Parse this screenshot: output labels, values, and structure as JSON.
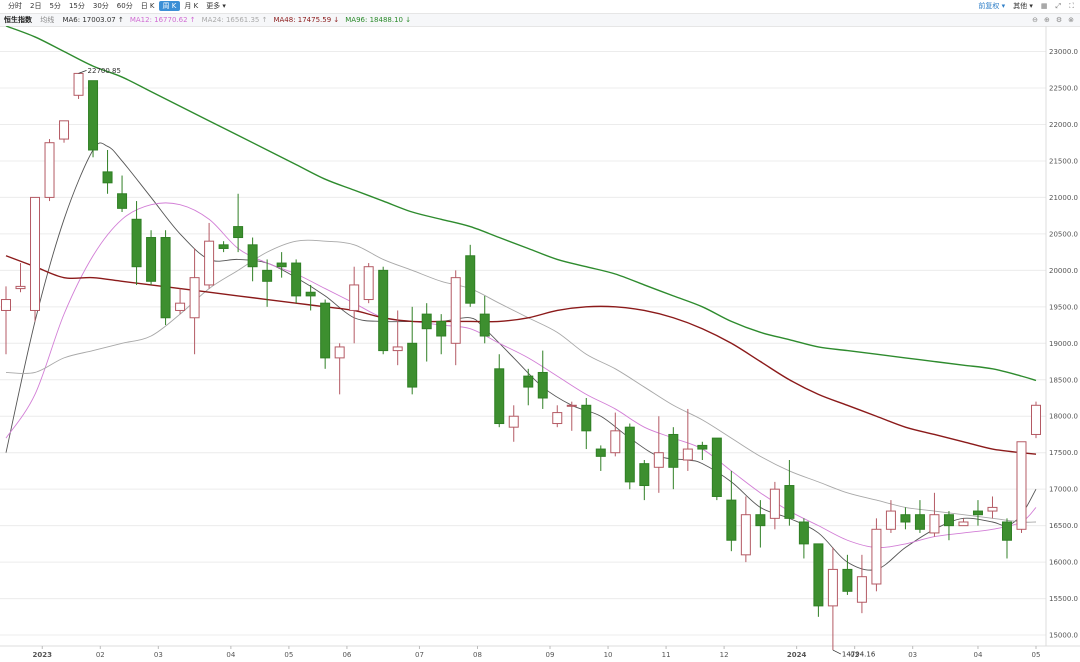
{
  "toolbar": {
    "periods": [
      "分时",
      "2日",
      "5分",
      "15分",
      "30分",
      "60分",
      "日 K",
      "周 K",
      "月 K",
      "更多"
    ],
    "active_period": "周 K",
    "right": {
      "adjust": "前复权",
      "other": "其他"
    }
  },
  "info": {
    "index_name": "恒生指数",
    "avg_label": "均线",
    "ma": [
      {
        "label": "MA6: 17003.07 ↑",
        "color": "#333333"
      },
      {
        "label": "MA12: 16770.62 ↑",
        "color": "#d16bd3"
      },
      {
        "label": "MA24: 16561.35 ↑",
        "color": "#aaaaaa"
      },
      {
        "label": "MA48: 17475.59 ↓",
        "color": "#8b1a1a"
      },
      {
        "label": "MA96: 18488.10 ↓",
        "color": "#2a8a2a"
      }
    ]
  },
  "chart_data": {
    "type": "candlestick",
    "title": "",
    "y_range": [
      14850,
      23350
    ],
    "y_ticks": [
      15000,
      15500,
      16000,
      16500,
      17000,
      17500,
      18000,
      18500,
      19000,
      19500,
      20000,
      20500,
      21000,
      21500,
      22000,
      22500,
      23000
    ],
    "y_tick_labels": [
      "15000.0",
      "15500.0",
      "16000.0",
      "16500.0",
      "17000.0",
      "17500.0",
      "18000.0",
      "18500.0",
      "19000.0",
      "19500.0",
      "20000.0",
      "20500.0",
      "21000.0",
      "21500.0",
      "22000.0",
      "22500.0",
      "23000.0"
    ],
    "x_labels": [
      {
        "label": "2023",
        "i": 2.5
      },
      {
        "label": "02",
        "i": 6.5
      },
      {
        "label": "03",
        "i": 10.5
      },
      {
        "label": "04",
        "i": 15.5
      },
      {
        "label": "05",
        "i": 19.5
      },
      {
        "label": "06",
        "i": 23.5
      },
      {
        "label": "07",
        "i": 28.5
      },
      {
        "label": "08",
        "i": 32.5
      },
      {
        "label": "09",
        "i": 37.5
      },
      {
        "label": "10",
        "i": 41.5
      },
      {
        "label": "11",
        "i": 45.5
      },
      {
        "label": "12",
        "i": 49.5
      },
      {
        "label": "2024",
        "i": 54.5
      },
      {
        "label": "02",
        "i": 58.5
      },
      {
        "label": "03",
        "i": 62.5
      },
      {
        "label": "04",
        "i": 67.0
      },
      {
        "label": "05",
        "i": 71.0
      }
    ],
    "candles": [
      [
        19450,
        19600,
        18850,
        19780
      ],
      [
        19750,
        19780,
        19700,
        20100
      ],
      [
        19450,
        21000,
        19300,
        21000
      ],
      [
        21000,
        21750,
        20950,
        21800
      ],
      [
        21800,
        22050,
        21750,
        22050
      ],
      [
        22400,
        22700,
        22350,
        22700
      ],
      [
        22600,
        21650,
        21550,
        22600
      ],
      [
        21350,
        21200,
        21050,
        21650
      ],
      [
        21050,
        20850,
        20800,
        21300
      ],
      [
        20700,
        20050,
        19800,
        20950
      ],
      [
        20450,
        19850,
        19800,
        20550
      ],
      [
        20450,
        19350,
        19250,
        20550
      ],
      [
        19450,
        19550,
        19400,
        19750
      ],
      [
        19350,
        19900,
        18850,
        20300
      ],
      [
        19800,
        20400,
        19750,
        20650
      ],
      [
        20350,
        20300,
        20250,
        20400
      ],
      [
        20600,
        20450,
        20250,
        21050
      ],
      [
        20350,
        20050,
        19850,
        20450
      ],
      [
        20000,
        19850,
        19500,
        20150
      ],
      [
        20100,
        20050,
        19900,
        20250
      ],
      [
        20100,
        19650,
        19550,
        20150
      ],
      [
        19700,
        19650,
        19450,
        19800
      ],
      [
        19550,
        18800,
        18650,
        19600
      ],
      [
        18800,
        18950,
        18300,
        19000
      ],
      [
        19450,
        19800,
        19000,
        20050
      ],
      [
        19600,
        20050,
        19550,
        20100
      ],
      [
        20000,
        18900,
        18850,
        20050
      ],
      [
        18900,
        18950,
        18700,
        19450
      ],
      [
        19000,
        18400,
        18300,
        19500
      ],
      [
        19400,
        19200,
        18750,
        19550
      ],
      [
        19300,
        19100,
        18850,
        19400
      ],
      [
        19000,
        19900,
        18700,
        20000
      ],
      [
        20200,
        19550,
        19500,
        20350
      ],
      [
        19400,
        19100,
        19000,
        19650
      ],
      [
        18650,
        17900,
        17850,
        18850
      ],
      [
        17850,
        18000,
        17650,
        18150
      ],
      [
        18550,
        18400,
        18150,
        18650
      ],
      [
        18600,
        18250,
        18100,
        18900
      ],
      [
        17900,
        18050,
        17850,
        18150
      ],
      [
        18150,
        18150,
        17800,
        18200
      ],
      [
        18150,
        17800,
        17550,
        18250
      ],
      [
        17550,
        17450,
        17250,
        17600
      ],
      [
        17500,
        17800,
        17450,
        18050
      ],
      [
        17850,
        17100,
        17000,
        17900
      ],
      [
        17350,
        17050,
        16850,
        17400
      ],
      [
        17300,
        17500,
        16950,
        18000
      ],
      [
        17750,
        17300,
        17000,
        17850
      ],
      [
        17400,
        17550,
        17250,
        18100
      ],
      [
        17600,
        17550,
        17400,
        17650
      ],
      [
        17700,
        16900,
        16850,
        17700
      ],
      [
        16850,
        16300,
        16150,
        17250
      ],
      [
        16100,
        16650,
        16000,
        16900
      ],
      [
        16650,
        16500,
        16200,
        16850
      ],
      [
        16600,
        17000,
        16450,
        17100
      ],
      [
        17050,
        16600,
        16500,
        17400
      ],
      [
        16550,
        16250,
        16050,
        16600
      ],
      [
        16250,
        15400,
        15250,
        16250
      ],
      [
        15400,
        15900,
        14795,
        16200
      ],
      [
        15900,
        15600,
        15550,
        16100
      ],
      [
        15450,
        15800,
        15300,
        16100
      ],
      [
        15700,
        16450,
        15600,
        16600
      ],
      [
        16450,
        16700,
        16400,
        16850
      ],
      [
        16650,
        16550,
        16450,
        16750
      ],
      [
        16650,
        16450,
        16400,
        16850
      ],
      [
        16400,
        16650,
        16350,
        16950
      ],
      [
        16650,
        16500,
        16300,
        16700
      ],
      [
        16500,
        16550,
        16500,
        16600
      ],
      [
        16700,
        16650,
        16500,
        16850
      ],
      [
        16700,
        16750,
        16600,
        16900
      ],
      [
        16550,
        16300,
        16050,
        16600
      ],
      [
        16450,
        17650,
        16400,
        17650
      ],
      [
        17750,
        18150,
        17700,
        18200
      ]
    ],
    "ma": {
      "MA6": {
        "color": "#555555",
        "anchors": [
          [
            0,
            17500
          ],
          [
            2,
            19300
          ],
          [
            4,
            20700
          ],
          [
            6,
            21650
          ],
          [
            7,
            21700
          ],
          [
            8,
            21500
          ],
          [
            10,
            21000
          ],
          [
            12,
            20500
          ],
          [
            14,
            20150
          ],
          [
            16,
            20150
          ],
          [
            18,
            20100
          ],
          [
            20,
            19900
          ],
          [
            22,
            19650
          ],
          [
            24,
            19350
          ],
          [
            26,
            19300
          ],
          [
            28,
            19300
          ],
          [
            30,
            19300
          ],
          [
            32,
            19350
          ],
          [
            33,
            19200
          ],
          [
            35,
            18800
          ],
          [
            37,
            18400
          ],
          [
            39,
            18150
          ],
          [
            41,
            18000
          ],
          [
            43,
            17700
          ],
          [
            45,
            17450
          ],
          [
            47,
            17400
          ],
          [
            48,
            17350
          ],
          [
            50,
            17100
          ],
          [
            52,
            16750
          ],
          [
            54,
            16600
          ],
          [
            56,
            16400
          ],
          [
            58,
            16000
          ],
          [
            60,
            15900
          ],
          [
            62,
            16200
          ],
          [
            64,
            16450
          ],
          [
            66,
            16600
          ],
          [
            68,
            16550
          ],
          [
            69,
            16500
          ],
          [
            70,
            16650
          ],
          [
            71,
            17000
          ]
        ]
      },
      "MA12": {
        "color": "#d27ed6",
        "anchors": [
          [
            0,
            17700
          ],
          [
            2,
            18300
          ],
          [
            4,
            19400
          ],
          [
            6,
            20200
          ],
          [
            8,
            20700
          ],
          [
            10,
            20900
          ],
          [
            12,
            20900
          ],
          [
            14,
            20700
          ],
          [
            16,
            20300
          ],
          [
            18,
            20100
          ],
          [
            20,
            19950
          ],
          [
            22,
            19750
          ],
          [
            24,
            19550
          ],
          [
            26,
            19350
          ],
          [
            28,
            19300
          ],
          [
            30,
            19250
          ],
          [
            32,
            19200
          ],
          [
            34,
            19000
          ],
          [
            36,
            18800
          ],
          [
            38,
            18550
          ],
          [
            40,
            18300
          ],
          [
            42,
            18100
          ],
          [
            44,
            17850
          ],
          [
            46,
            17700
          ],
          [
            48,
            17550
          ],
          [
            50,
            17250
          ],
          [
            52,
            16950
          ],
          [
            54,
            16700
          ],
          [
            56,
            16500
          ],
          [
            58,
            16300
          ],
          [
            60,
            16200
          ],
          [
            62,
            16250
          ],
          [
            64,
            16350
          ],
          [
            66,
            16400
          ],
          [
            68,
            16450
          ],
          [
            70,
            16550
          ],
          [
            71,
            16750
          ]
        ]
      },
      "MA24": {
        "color": "#a8a8a8",
        "anchors": [
          [
            0,
            18600
          ],
          [
            2,
            18600
          ],
          [
            4,
            18800
          ],
          [
            6,
            18900
          ],
          [
            8,
            19000
          ],
          [
            10,
            19100
          ],
          [
            12,
            19400
          ],
          [
            14,
            19750
          ],
          [
            16,
            20000
          ],
          [
            18,
            20250
          ],
          [
            20,
            20400
          ],
          [
            22,
            20400
          ],
          [
            24,
            20350
          ],
          [
            26,
            20150
          ],
          [
            28,
            20000
          ],
          [
            30,
            19850
          ],
          [
            32,
            19750
          ],
          [
            34,
            19550
          ],
          [
            36,
            19350
          ],
          [
            38,
            19150
          ],
          [
            40,
            18850
          ],
          [
            42,
            18650
          ],
          [
            44,
            18400
          ],
          [
            46,
            18150
          ],
          [
            48,
            17950
          ],
          [
            50,
            17700
          ],
          [
            52,
            17450
          ],
          [
            54,
            17250
          ],
          [
            56,
            17100
          ],
          [
            58,
            16950
          ],
          [
            60,
            16850
          ],
          [
            62,
            16750
          ],
          [
            64,
            16700
          ],
          [
            66,
            16650
          ],
          [
            68,
            16600
          ],
          [
            70,
            16550
          ],
          [
            71,
            16550
          ]
        ]
      },
      "MA48": {
        "color": "#8b1a1a",
        "anchors": [
          [
            0,
            20200
          ],
          [
            2,
            20050
          ],
          [
            4,
            19900
          ],
          [
            6,
            19900
          ],
          [
            8,
            19850
          ],
          [
            10,
            19800
          ],
          [
            12,
            19750
          ],
          [
            14,
            19700
          ],
          [
            16,
            19650
          ],
          [
            18,
            19600
          ],
          [
            20,
            19550
          ],
          [
            22,
            19500
          ],
          [
            24,
            19450
          ],
          [
            26,
            19350
          ],
          [
            28,
            19300
          ],
          [
            30,
            19300
          ],
          [
            32,
            19300
          ],
          [
            34,
            19300
          ],
          [
            36,
            19350
          ],
          [
            38,
            19450
          ],
          [
            40,
            19500
          ],
          [
            42,
            19500
          ],
          [
            44,
            19450
          ],
          [
            46,
            19350
          ],
          [
            48,
            19200
          ],
          [
            50,
            19000
          ],
          [
            52,
            18750
          ],
          [
            54,
            18500
          ],
          [
            56,
            18300
          ],
          [
            58,
            18150
          ],
          [
            60,
            18000
          ],
          [
            62,
            17850
          ],
          [
            64,
            17750
          ],
          [
            66,
            17650
          ],
          [
            68,
            17550
          ],
          [
            70,
            17500
          ],
          [
            71,
            17480
          ]
        ]
      },
      "MA96": {
        "color": "#2e8b2e",
        "anchors": [
          [
            0,
            23350
          ],
          [
            2,
            23200
          ],
          [
            4,
            23000
          ],
          [
            6,
            22800
          ],
          [
            8,
            22650
          ],
          [
            10,
            22450
          ],
          [
            12,
            22250
          ],
          [
            14,
            22050
          ],
          [
            16,
            21850
          ],
          [
            18,
            21650
          ],
          [
            20,
            21450
          ],
          [
            22,
            21250
          ],
          [
            24,
            21100
          ],
          [
            26,
            20950
          ],
          [
            28,
            20800
          ],
          [
            30,
            20700
          ],
          [
            32,
            20600
          ],
          [
            34,
            20450
          ],
          [
            36,
            20300
          ],
          [
            38,
            20150
          ],
          [
            40,
            20050
          ],
          [
            42,
            19950
          ],
          [
            44,
            19800
          ],
          [
            46,
            19650
          ],
          [
            48,
            19500
          ],
          [
            50,
            19300
          ],
          [
            52,
            19150
          ],
          [
            54,
            19050
          ],
          [
            56,
            18950
          ],
          [
            58,
            18900
          ],
          [
            60,
            18850
          ],
          [
            62,
            18800
          ],
          [
            64,
            18750
          ],
          [
            66,
            18700
          ],
          [
            68,
            18650
          ],
          [
            70,
            18550
          ],
          [
            71,
            18490
          ]
        ]
      }
    },
    "annotations": [
      {
        "label": "22700.85",
        "i": 5,
        "value": 22700.85,
        "side": "top"
      },
      {
        "label": "14794.16",
        "i": 57,
        "value": 14794.16,
        "side": "bottom"
      }
    ],
    "up_color": "#ffffff",
    "up_stroke": "#b45a64",
    "down_color": "#3d8f2f",
    "down_stroke": "#2f7f24",
    "grid": true
  }
}
